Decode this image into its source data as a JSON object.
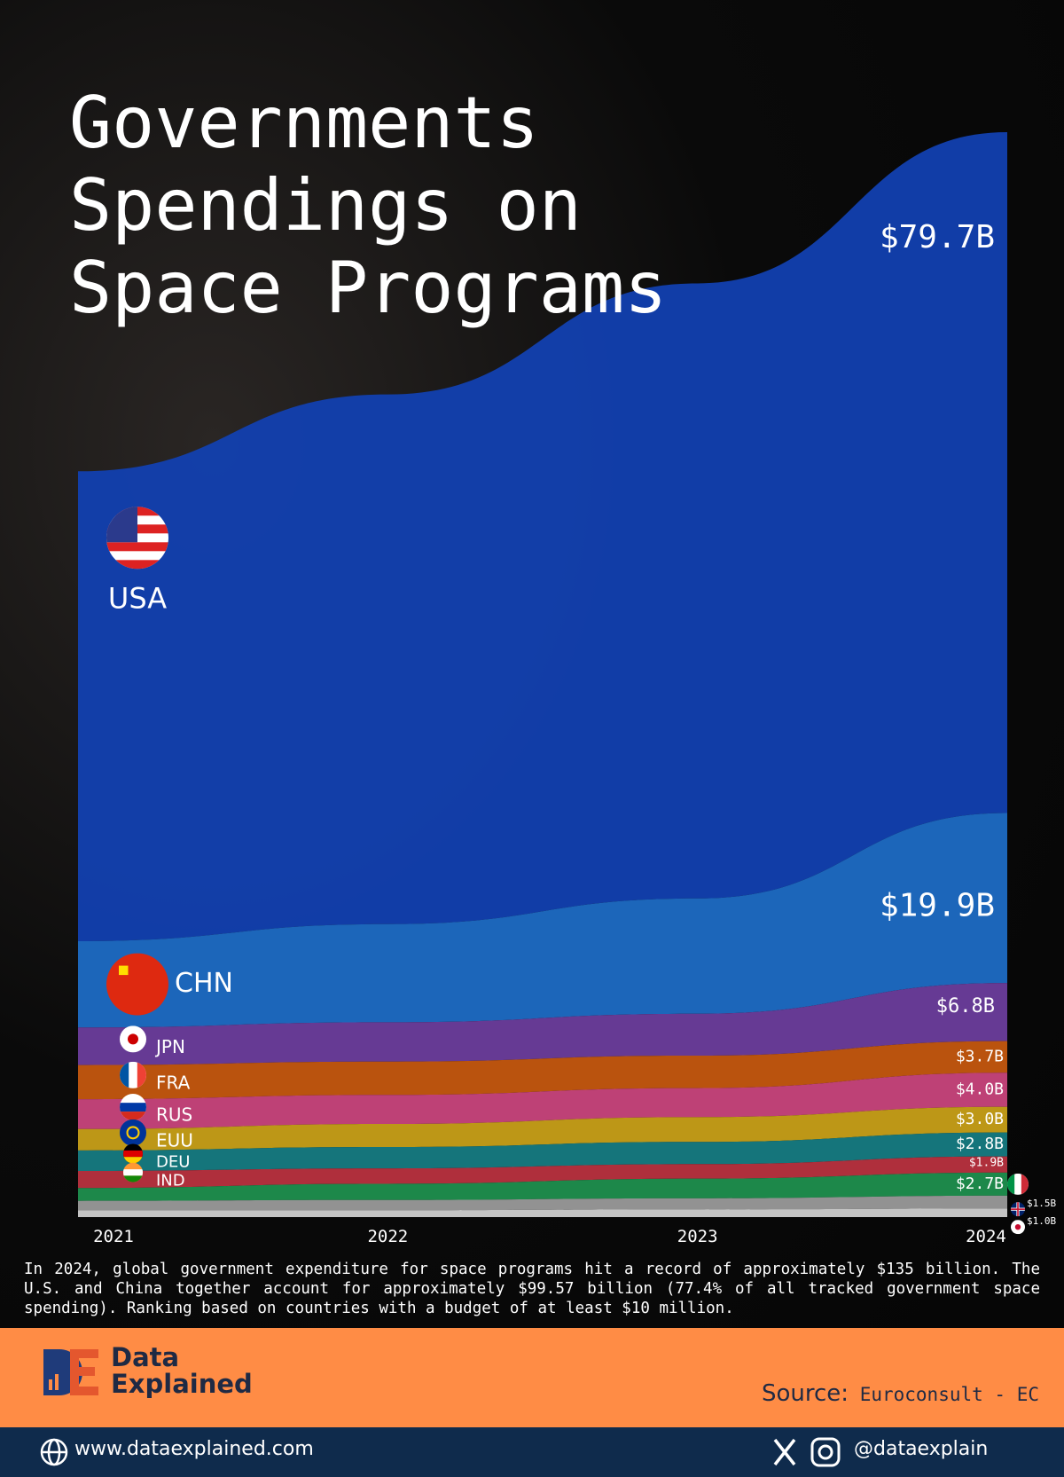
{
  "title": "Governments Spendings on Space Programs",
  "chart_data": {
    "type": "stacked-area",
    "x": [
      "2021",
      "2022",
      "2023",
      "2024"
    ],
    "series": [
      {
        "name": "USA",
        "color": "#1240b0",
        "values": [
          55,
          62,
          72,
          79.7
        ],
        "value_labels": [
          null,
          null,
          null,
          "$79.7B"
        ]
      },
      {
        "name": "CHN",
        "color": "#1d6cc4",
        "values": [
          10.1,
          11.5,
          13.5,
          19.9
        ],
        "value_labels": [
          null,
          null,
          null,
          "$19.9B"
        ]
      },
      {
        "name": "JPN",
        "color": "#6b3d9c",
        "values": [
          4.4,
          4.6,
          4.9,
          6.8
        ],
        "value_labels": [
          null,
          null,
          null,
          "$6.8B"
        ]
      },
      {
        "name": "FRA",
        "color": "#c4570f",
        "values": [
          4.0,
          3.9,
          3.8,
          3.7
        ],
        "value_labels": [
          null,
          null,
          null,
          "$3.7B"
        ]
      },
      {
        "name": "RUS",
        "color": "#c8447c",
        "values": [
          3.5,
          3.4,
          3.4,
          4.0
        ],
        "value_labels": [
          null,
          null,
          null,
          "$4.0B"
        ]
      },
      {
        "name": "EUU",
        "color": "#c79f18",
        "values": [
          2.5,
          2.7,
          2.9,
          3.0
        ],
        "value_labels": [
          null,
          null,
          null,
          "$3.0B"
        ]
      },
      {
        "name": "DEU",
        "color": "#167b82",
        "values": [
          2.4,
          2.5,
          2.6,
          2.8
        ],
        "value_labels": [
          null,
          null,
          null,
          "$2.8B"
        ]
      },
      {
        "name": "IND",
        "color": "#b8323f",
        "values": [
          2.0,
          1.8,
          1.7,
          1.9
        ],
        "value_labels": [
          null,
          null,
          null,
          "$1.9B"
        ]
      },
      {
        "color": "#1f8f4e",
        "values": [
          1.5,
          1.9,
          2.3,
          2.7
        ],
        "value_labels": [
          null,
          null,
          null,
          "$2.7B"
        ]
      },
      {
        "color": "#9a9a9a",
        "values": [
          1.1,
          1.2,
          1.3,
          1.5
        ],
        "value_labels": [
          null,
          null,
          null,
          "$1.5B"
        ]
      },
      {
        "color": "#cfcfcf",
        "values": [
          0.8,
          0.8,
          0.9,
          1.0
        ],
        "value_labels": [
          null,
          null,
          null,
          "$1.0B"
        ]
      }
    ]
  },
  "description": "In 2024, global government expenditure for space programs hit a record of approximately $135 billion. The U.S. and China together account for approximately $99.57 billion (77.4% of all tracked government space spending). Ranking based on countries with a budget of at least $10 million.",
  "footer": {
    "brand_top": "Data",
    "brand_bottom": "Explained",
    "source_label": "Source:",
    "source": "Euroconsult - EC",
    "website": "www.dataexplained.com",
    "handle": "@dataexplain"
  }
}
